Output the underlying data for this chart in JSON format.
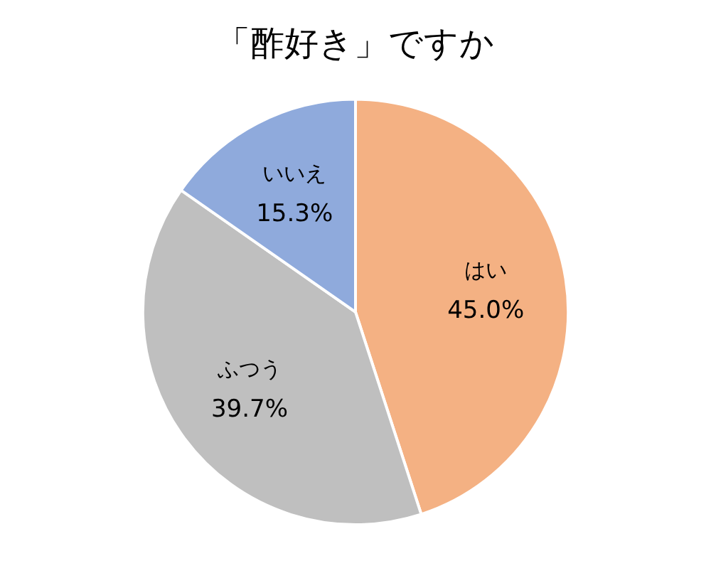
{
  "chart_data": {
    "type": "pie",
    "title": "「酢好き」ですか",
    "categories": [
      "はい",
      "ふつう",
      "いいえ"
    ],
    "values": [
      45.0,
      39.7,
      15.3
    ],
    "colors": [
      "#f4b183",
      "#bfbfbf",
      "#8faadc"
    ],
    "value_labels": [
      "45.0%",
      "39.7%",
      "15.3%"
    ],
    "legend": false
  }
}
